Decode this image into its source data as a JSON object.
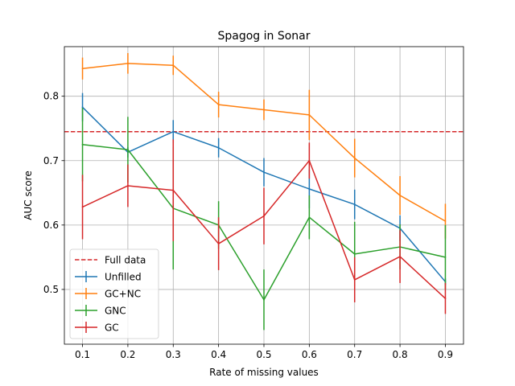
{
  "chart_data": {
    "type": "line",
    "title": "Spagog in Sonar",
    "xlabel": "Rate of missing values",
    "ylabel": "AUC score",
    "x": [
      0.1,
      0.2,
      0.3,
      0.4,
      0.5,
      0.6,
      0.7,
      0.8,
      0.9
    ],
    "xticks": [
      "0.1",
      "0.2",
      "0.3",
      "0.4",
      "0.5",
      "0.6",
      "0.7",
      "0.8",
      "0.9"
    ],
    "yticks": [
      "0.5",
      "0.6",
      "0.7",
      "0.8"
    ],
    "xlim": [
      0.06,
      0.94
    ],
    "ylim": [
      0.415,
      0.877
    ],
    "grid": true,
    "legend_position": "lower-left",
    "reference_line": {
      "name": "Full data",
      "value": 0.745,
      "color": "#d62728",
      "style": "dashed"
    },
    "series": [
      {
        "name": "Unfilled",
        "color": "#1f77b4",
        "values": [
          0.783,
          0.713,
          0.745,
          0.72,
          0.682,
          0.656,
          0.632,
          0.595,
          0.512
        ],
        "errors": [
          0.022,
          0.008,
          0.018,
          0.015,
          0.022,
          0.03,
          0.023,
          0.02,
          0.005
        ]
      },
      {
        "name": "GC+NC",
        "color": "#ff7f0e",
        "values": [
          0.843,
          0.851,
          0.848,
          0.787,
          0.779,
          0.771,
          0.704,
          0.646,
          0.606
        ],
        "errors": [
          0.017,
          0.016,
          0.015,
          0.02,
          0.016,
          0.039,
          0.03,
          0.03,
          0.027
        ]
      },
      {
        "name": "GNC",
        "color": "#2ca02c",
        "values": [
          0.725,
          0.717,
          0.626,
          0.6,
          0.484,
          0.612,
          0.555,
          0.566,
          0.55
        ],
        "errors": [
          0.057,
          0.051,
          0.095,
          0.037,
          0.047,
          0.034,
          0.05,
          0.035,
          0.05
        ]
      },
      {
        "name": "GC",
        "color": "#d62728",
        "values": [
          0.628,
          0.661,
          0.654,
          0.571,
          0.614,
          0.7,
          0.515,
          0.551,
          0.486
        ],
        "errors": [
          0.05,
          0.033,
          0.079,
          0.041,
          0.044,
          0.028,
          0.035,
          0.041,
          0.024
        ]
      }
    ]
  }
}
